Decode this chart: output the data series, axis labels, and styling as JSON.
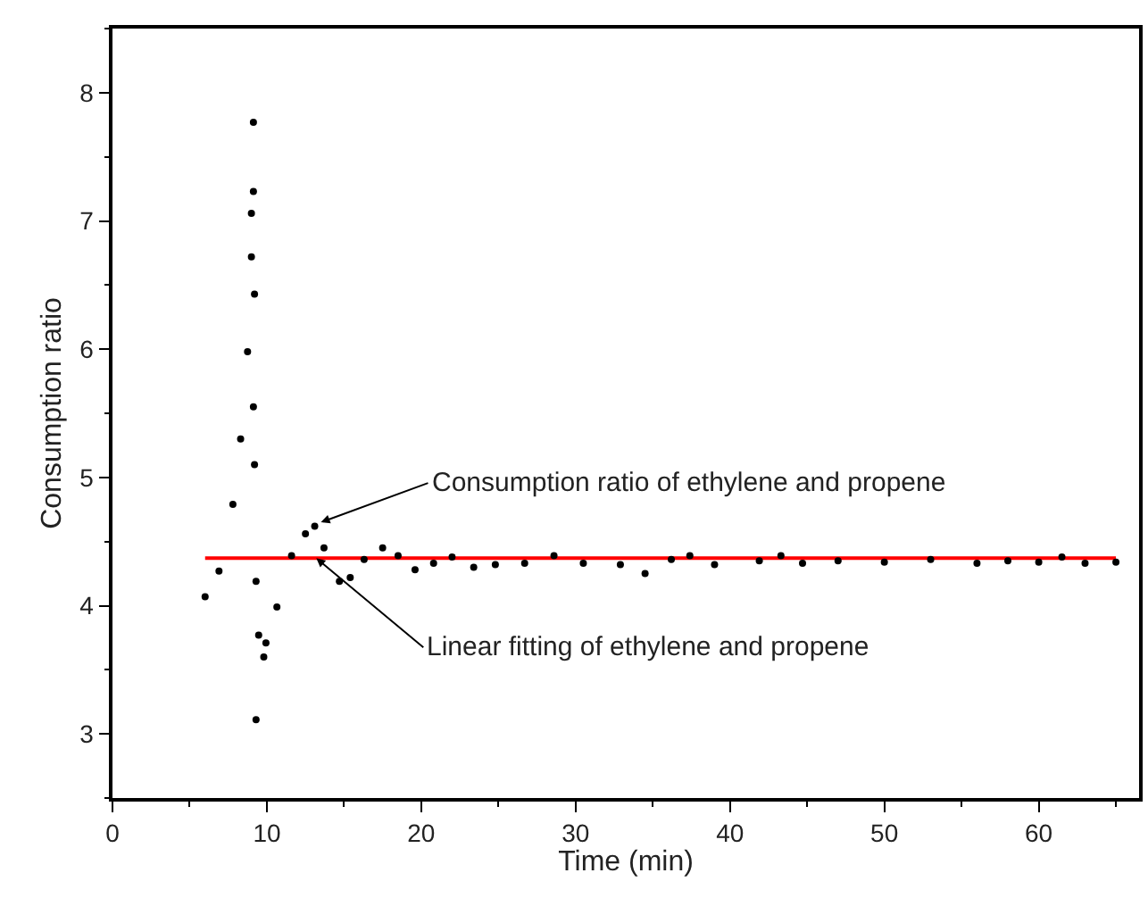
{
  "chart_data": {
    "type": "scatter",
    "xlabel": "Time (min)",
    "ylabel": "Consumption ratio",
    "xlim": [
      0,
      66.5
    ],
    "xticks": [
      0,
      10,
      20,
      30,
      40,
      50,
      60
    ],
    "ylim": [
      2.5,
      8.5
    ],
    "yticks": [
      3,
      4,
      5,
      6,
      7,
      8
    ],
    "marker": "circle",
    "series": [
      {
        "color": "#000000",
        "x": [
          6.0,
          6.9,
          7.8,
          8.3,
          8.75,
          9.0,
          9.13,
          9.13,
          9.0,
          9.2,
          9.13,
          9.2,
          9.3,
          9.3,
          9.47,
          9.8,
          9.94,
          10.65,
          11.6,
          12.5,
          13.1,
          13.7,
          14.7,
          15.4,
          16.3,
          17.5,
          18.5,
          19.6,
          20.8,
          22.0,
          23.4,
          24.8,
          26.7,
          28.6,
          30.5,
          32.9,
          34.5,
          36.2,
          37.4,
          39.0,
          41.9,
          43.3,
          44.7,
          47,
          50,
          53,
          56,
          58,
          60,
          61.5,
          63,
          65
        ],
        "values": [
          4.07,
          4.27,
          4.79,
          5.3,
          5.98,
          6.72,
          7.77,
          7.23,
          7.06,
          6.43,
          5.55,
          5.1,
          4.19,
          3.11,
          3.77,
          3.6,
          3.71,
          3.99,
          4.39,
          4.56,
          4.62,
          4.45,
          4.19,
          4.22,
          4.36,
          4.45,
          4.39,
          4.28,
          4.33,
          4.38,
          4.3,
          4.32,
          4.33,
          4.39,
          4.33,
          4.32,
          4.25,
          4.36,
          4.39,
          4.32,
          4.35,
          4.39,
          4.33,
          4.35,
          4.34,
          4.36,
          4.33,
          4.35,
          4.34,
          4.38,
          4.33,
          4.34
        ]
      },
      {
        "type": "line",
        "color": "#ff0000",
        "marker": "none",
        "line_style": "solid",
        "x": [
          6,
          65
        ],
        "values": [
          4.37,
          4.37
        ]
      }
    ],
    "annotations": [
      {
        "text": "Consumption ratio of ethylene and propene",
        "x": 13.5,
        "y": 4.65
      },
      {
        "text": "Linear fitting of ethylene and propene",
        "x": 13.2,
        "y": 4.37
      }
    ]
  }
}
